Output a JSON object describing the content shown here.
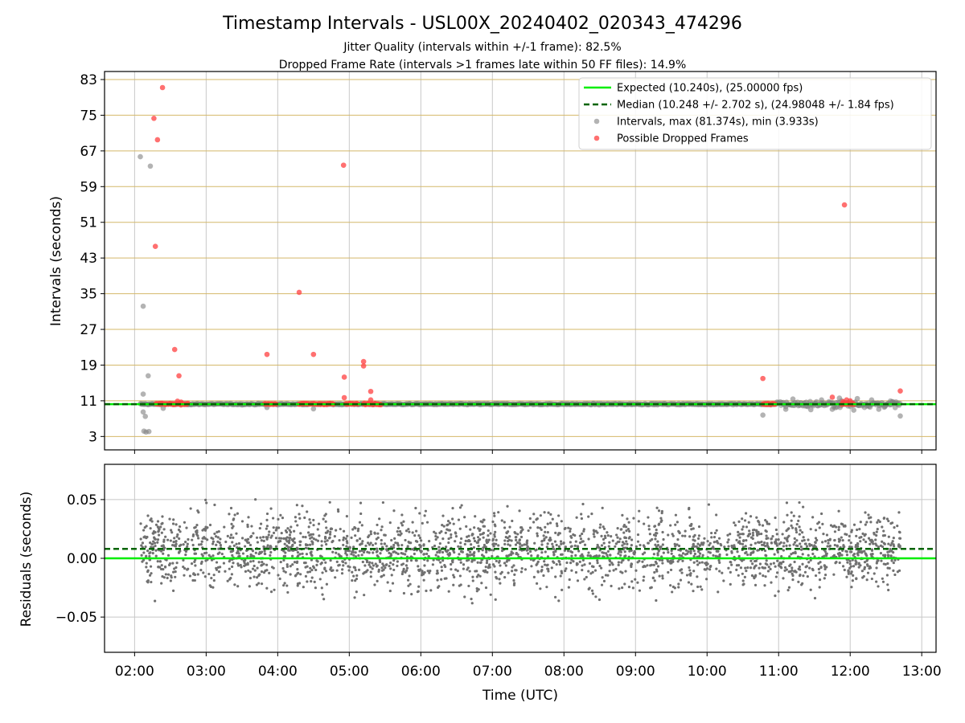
{
  "chart_data": {
    "type": "scatter",
    "title": "Timestamp Intervals - USL00X_20240402_020343_474296",
    "subtitle_lines": [
      "Jitter Quality (intervals within +/-1 frame): 82.5%",
      "Dropped Frame Rate (intervals >1 frames late within 50 FF files): 14.9%"
    ],
    "xlabel": "Time (UTC)",
    "x_ticks": [
      "02:00",
      "03:00",
      "04:00",
      "05:00",
      "06:00",
      "07:00",
      "08:00",
      "09:00",
      "10:00",
      "11:00",
      "12:00",
      "13:00"
    ],
    "x_range_hours": [
      1.58,
      13.2
    ],
    "colors": {
      "expected": "#00ee00",
      "median": "#006400",
      "intervals": "#808080",
      "dropped": "#ff4040",
      "grid_h_top": "#d4b86a",
      "grid": "#c8c8c8"
    },
    "panels": {
      "intervals": {
        "ylabel": "Intervals (seconds)",
        "y_ticks": [
          3,
          11,
          19,
          27,
          35,
          43,
          51,
          59,
          67,
          75,
          83
        ],
        "ylim": [
          0,
          84.8
        ],
        "expected": 10.24,
        "median": 10.248,
        "legend": {
          "position": "top-right",
          "entries": [
            "Expected (10.240s), (25.00000 fps)",
            "Median (10.248 +/- 2.702 s), (24.98048 +/- 1.84 fps)",
            "Intervals, max (81.374s), min (3.933s)",
            "Possible Dropped Frames"
          ]
        },
        "outliers_gray": [
          [
            2.08,
            65.7
          ],
          [
            2.22,
            63.6
          ],
          [
            2.12,
            32.2
          ],
          [
            2.19,
            16.6
          ],
          [
            2.12,
            12.5
          ],
          [
            2.12,
            8.5
          ],
          [
            2.15,
            7.5
          ],
          [
            2.13,
            4.2
          ],
          [
            2.2,
            4.1
          ],
          [
            2.16,
            4.0
          ],
          [
            3.85,
            9.5
          ],
          [
            4.5,
            9.2
          ],
          [
            10.78,
            7.8
          ],
          [
            12.7,
            7.6
          ],
          [
            2.4,
            9.3
          ],
          [
            11.2,
            11.4
          ],
          [
            11.6,
            11.2
          ],
          [
            11.85,
            11.6
          ],
          [
            12.1,
            11.5
          ],
          [
            12.3,
            11.2
          ],
          [
            11.1,
            9.1
          ],
          [
            11.45,
            9.0
          ],
          [
            11.75,
            9.1
          ],
          [
            12.05,
            8.9
          ],
          [
            12.4,
            9.1
          ]
        ],
        "dropped_frames": [
          [
            2.39,
            81.2
          ],
          [
            2.27,
            74.3
          ],
          [
            2.32,
            69.5
          ],
          [
            2.29,
            45.6
          ],
          [
            4.3,
            35.3
          ],
          [
            2.56,
            22.5
          ],
          [
            3.85,
            21.4
          ],
          [
            4.5,
            21.4
          ],
          [
            2.62,
            16.6
          ],
          [
            4.93,
            16.3
          ],
          [
            5.2,
            19.8
          ],
          [
            5.2,
            18.8
          ],
          [
            5.3,
            13.1
          ],
          [
            10.78,
            16.0
          ],
          [
            11.92,
            54.9
          ],
          [
            4.92,
            63.8
          ],
          [
            12.7,
            13.2
          ],
          [
            4.93,
            11.7
          ],
          [
            5.3,
            11.2
          ],
          [
            11.75,
            11.8
          ],
          [
            11.95,
            11.2
          ],
          [
            12.0,
            11.0
          ],
          [
            11.9,
            10.8
          ],
          [
            2.6,
            10.9
          ],
          [
            2.65,
            10.7
          ]
        ],
        "dropped_clusters": [
          [
            2.3,
            2.75
          ],
          [
            3.82,
            3.98
          ],
          [
            4.3,
            4.78
          ],
          [
            4.95,
            5.12
          ],
          [
            5.2,
            5.45
          ],
          [
            10.78,
            10.95
          ],
          [
            11.88,
            12.05
          ]
        ]
      },
      "residuals": {
        "ylabel": "Residuals (seconds)",
        "y_ticks": [
          "0.05",
          "0.00",
          "−0.05"
        ],
        "y_tick_values": [
          0.05,
          0.0,
          -0.05
        ],
        "ylim": [
          -0.08,
          0.08
        ],
        "expected": 0.0,
        "median": 0.008,
        "point_count": 2600,
        "x_span_hours": [
          2.08,
          12.7
        ]
      }
    }
  }
}
